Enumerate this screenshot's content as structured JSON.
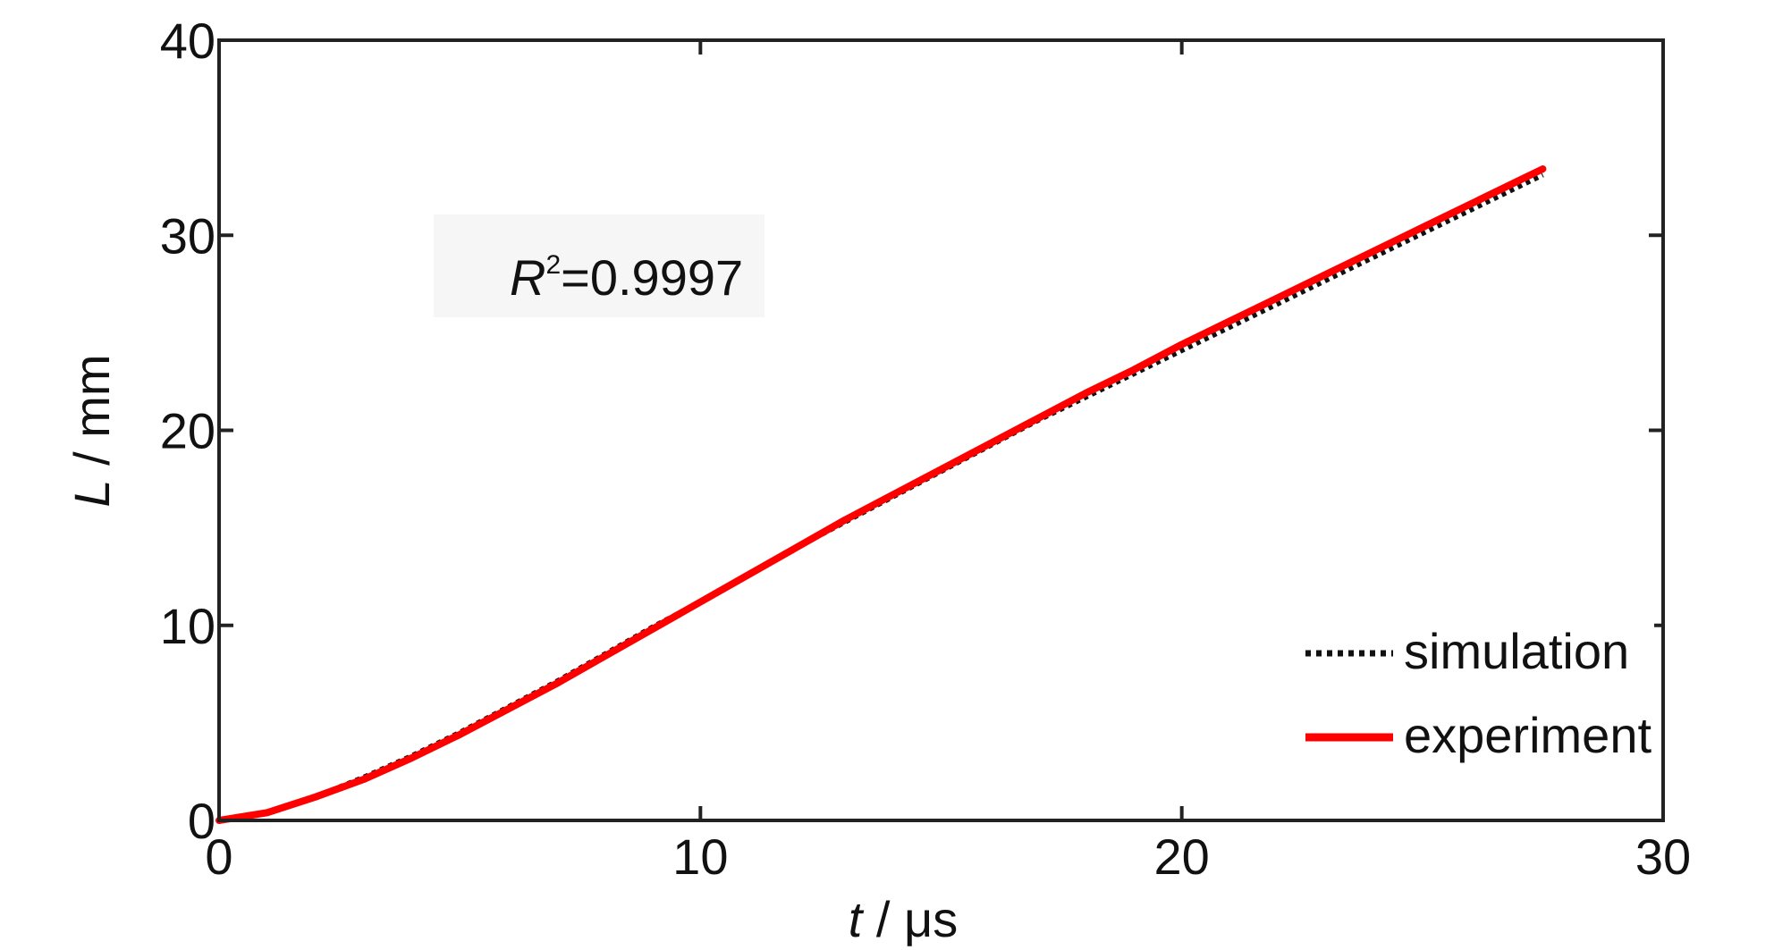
{
  "chart_data": {
    "type": "line",
    "xlabel": {
      "var": "t",
      "unit": " / μs"
    },
    "ylabel": {
      "var": "L",
      "unit": " / mm"
    },
    "xlim": [
      0,
      30
    ],
    "ylim": [
      0,
      40
    ],
    "xticks": [
      0,
      10,
      20,
      30
    ],
    "yticks": [
      0,
      10,
      20,
      30,
      40
    ],
    "grid": false,
    "legend_position": "bottom-right",
    "annotation": {
      "var": "R",
      "sup": "2",
      "value": "=0.9997"
    },
    "series": [
      {
        "name": "simulation",
        "color": "#111111",
        "style": "dotted",
        "x": [
          0,
          1,
          2,
          3,
          4,
          5,
          6,
          7,
          8,
          9,
          10,
          11,
          12,
          13,
          14,
          15,
          16,
          17,
          18,
          19,
          20,
          21,
          22,
          23,
          24,
          25,
          26,
          27,
          27.5
        ],
        "y": [
          0,
          0.4,
          1.2,
          2.2,
          3.3,
          4.5,
          5.8,
          7.1,
          8.5,
          9.9,
          11.2,
          12.6,
          14.0,
          15.3,
          16.6,
          17.9,
          19.2,
          20.5,
          21.7,
          22.9,
          24.1,
          25.3,
          26.5,
          27.7,
          28.9,
          30.1,
          31.3,
          32.5,
          33.1
        ]
      },
      {
        "name": "experiment",
        "color": "#ff0000",
        "style": "solid",
        "x": [
          0,
          1,
          2,
          3,
          4,
          5,
          6,
          7,
          8,
          9,
          10,
          11,
          12,
          13,
          14,
          15,
          16,
          17,
          18,
          19,
          20,
          21,
          22,
          23,
          24,
          25,
          26,
          27,
          27.5
        ],
        "y": [
          0,
          0.4,
          1.2,
          2.1,
          3.2,
          4.4,
          5.7,
          7.0,
          8.4,
          9.8,
          11.2,
          12.6,
          14.0,
          15.4,
          16.7,
          18.0,
          19.3,
          20.6,
          21.9,
          23.1,
          24.4,
          25.6,
          26.8,
          28.0,
          29.2,
          30.4,
          31.6,
          32.8,
          33.4
        ]
      }
    ]
  }
}
